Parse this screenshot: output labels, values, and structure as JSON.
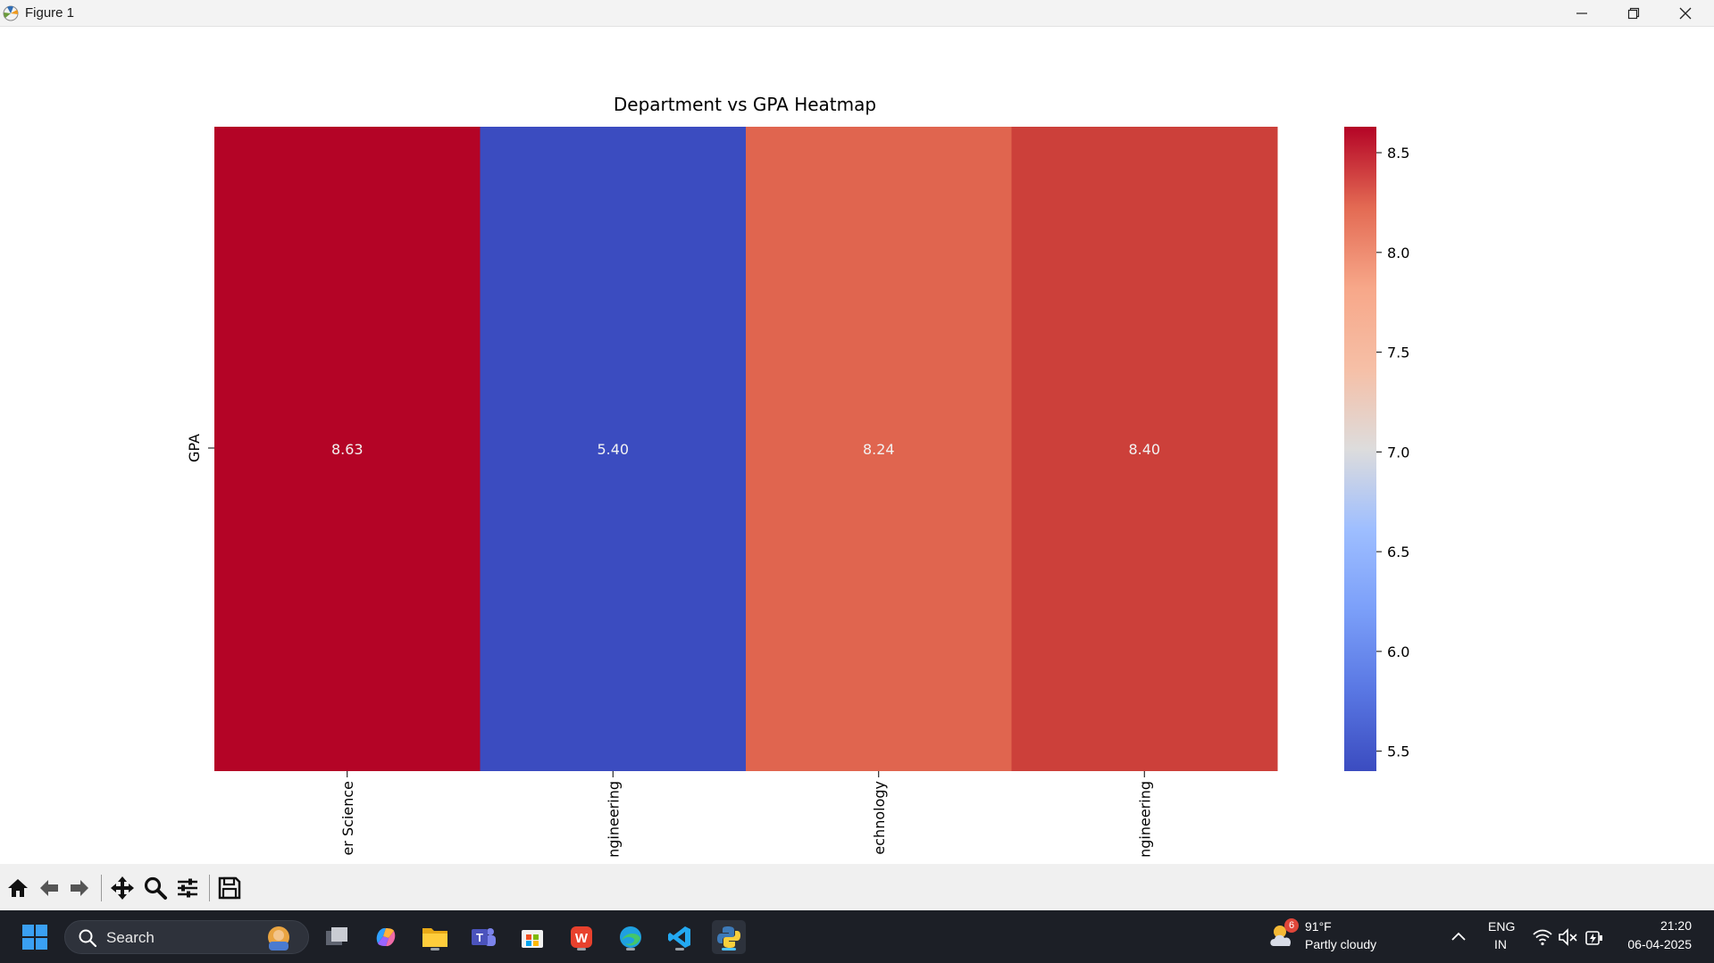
{
  "window": {
    "title": "Figure 1",
    "controls": [
      "minimize-icon",
      "restore-icon",
      "close-icon"
    ]
  },
  "chart_data": {
    "type": "heatmap",
    "title": "Department vs GPA Heatmap",
    "ylabel": "GPA",
    "xlabel": "",
    "rows": [
      "GPA"
    ],
    "columns": [
      "er Science",
      "ngineering",
      "echnology",
      "ngineering"
    ],
    "values": [
      [
        8.63,
        5.4,
        8.24,
        8.4
      ]
    ],
    "value_labels": [
      "8.63",
      "5.40",
      "8.24",
      "8.40"
    ],
    "colormap": "coolwarm",
    "vmin": 5.4,
    "vmax": 8.63,
    "cell_colors": [
      "#b40426",
      "#3b4cc0",
      "#e0654f",
      "#cc403a"
    ],
    "colorbar": {
      "ticks": [
        5.5,
        6.0,
        6.5,
        7.0,
        7.5,
        8.0,
        8.5
      ],
      "tick_labels": [
        "5.5",
        "6.0",
        "6.5",
        "7.0",
        "7.5",
        "8.0",
        "8.5"
      ],
      "placement": "right"
    }
  },
  "toolbar": {
    "buttons": [
      "home-icon",
      "back-icon",
      "forward-icon",
      "pan-icon",
      "zoom-icon",
      "configure-icon",
      "save-icon"
    ]
  },
  "taskbar": {
    "search_label": "Search",
    "apps": [
      "start-icon",
      "task-view-icon",
      "copilot-icon",
      "file-explorer-icon",
      "teams-icon",
      "store-icon",
      "wps-office-icon",
      "edge-icon",
      "vscode-icon",
      "python-icon"
    ],
    "weather": {
      "badge": "6",
      "temperature": "91°F",
      "condition": "Partly cloudy"
    },
    "language": {
      "line1": "ENG",
      "line2": "IN"
    },
    "clock": {
      "time": "21:20",
      "date": "06-04-2025"
    }
  }
}
